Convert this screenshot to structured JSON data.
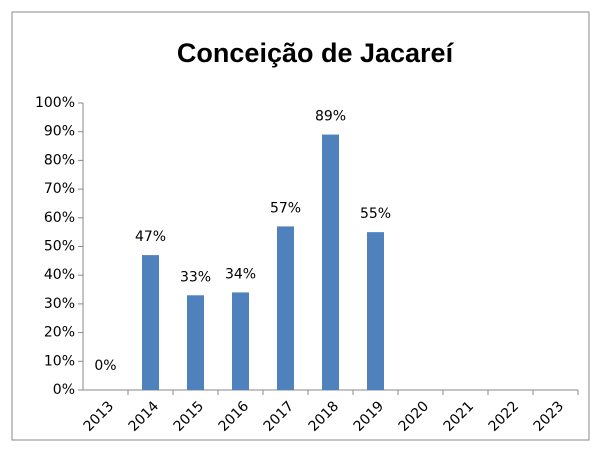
{
  "chart_data": {
    "type": "bar",
    "title": "Conceição de Jacareí",
    "categories": [
      "2013",
      "2014",
      "2015",
      "2016",
      "2017",
      "2018",
      "2019",
      "2020",
      "2021",
      "2022",
      "2023"
    ],
    "values": [
      0,
      47,
      33,
      34,
      57,
      89,
      55,
      null,
      null,
      null,
      null
    ],
    "value_labels": [
      "0%",
      "47%",
      "33%",
      "34%",
      "57%",
      "89%",
      "55%",
      null,
      null,
      null,
      null
    ],
    "color": "#4f81bd",
    "ylim": [
      0,
      100
    ],
    "yticks": [
      {
        "value": 0,
        "label": "0%"
      },
      {
        "value": 10,
        "label": "10%"
      },
      {
        "value": 20,
        "label": "20%"
      },
      {
        "value": 30,
        "label": "30%"
      },
      {
        "value": 40,
        "label": "40%"
      },
      {
        "value": 50,
        "label": "50%"
      },
      {
        "value": 60,
        "label": "60%"
      },
      {
        "value": 70,
        "label": "70%"
      },
      {
        "value": 80,
        "label": "80%"
      },
      {
        "value": 90,
        "label": "90%"
      },
      {
        "value": 100,
        "label": "100%"
      }
    ],
    "grid": false
  }
}
